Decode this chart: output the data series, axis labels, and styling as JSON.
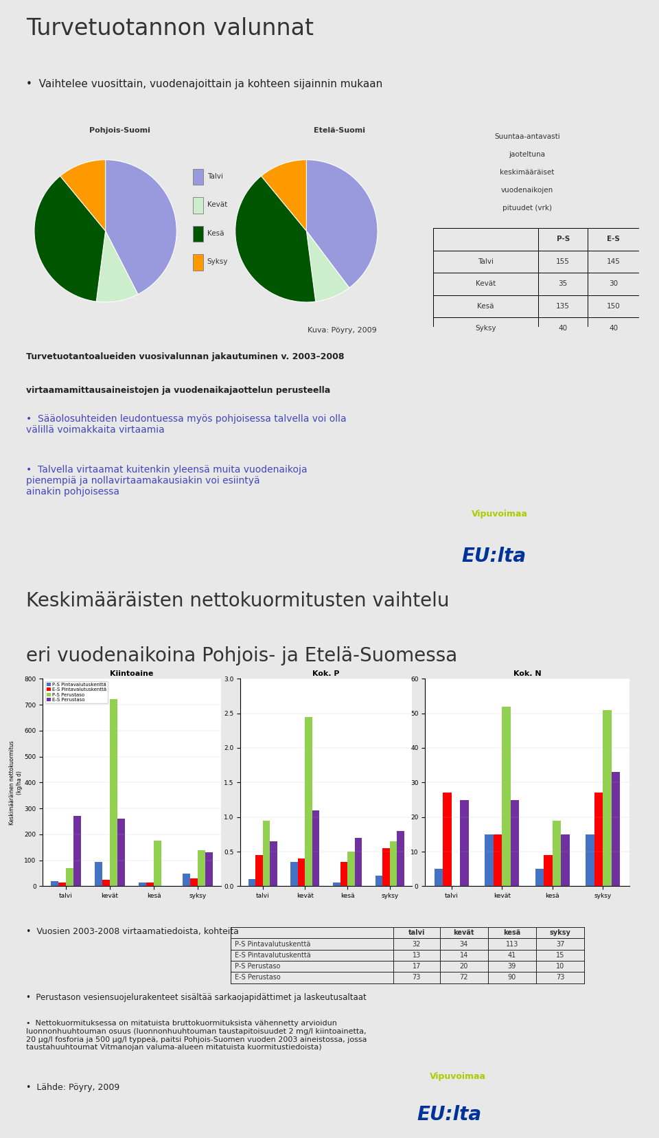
{
  "slide1": {
    "title": "Turvetuotannon valunnat",
    "bullet1": "Vaihtelee vuosittain, vuodenajoittain ja kohteen sijainnin mukaan",
    "pie_label_north": "Pohjois-Suomi",
    "pie_label_south": "Etelä-Suomi",
    "pie_legend": [
      "Talvi",
      "Kevät",
      "Kesä",
      "Syksy"
    ],
    "pie_colors": [
      "#9999dd",
      "#cceecc",
      "#005500",
      "#ff9900"
    ],
    "pie_north": [
      155,
      35,
      135,
      40
    ],
    "pie_south": [
      145,
      30,
      150,
      40
    ],
    "table_header": [
      "",
      "P-S",
      "E-S"
    ],
    "table_rows": [
      [
        "Talvi",
        "155",
        "145"
      ],
      [
        "Kevät",
        "35",
        "30"
      ],
      [
        "Kesä",
        "135",
        "150"
      ],
      [
        "Syksy",
        "40",
        "40"
      ]
    ],
    "table_title_lines": [
      "Suuntaa-antavasti",
      "jaoteltuna",
      "keskimääräiset",
      "vuodenaikojen",
      "pituudet (vrk)"
    ],
    "caption1": "Kuva: Pöyry, 2009",
    "caption2": "Turvetuotantoalueiden vuosivalunnan jakautuminen v. 2003–2008",
    "caption3": "virtaamamittausaineistojen ja vuodenaikajaottelun perusteella",
    "bullet2": "Sääolosuhteiden leudontuessa myös pohjoisessa talvella voi olla\nvälillä voimakkaita virtaamia",
    "bullet3": "Talvella virtaamat kuitenkin yleensä muita vuodenaikoja\npienempiä ja nollavirtaamakausiakin voi esiintyä\nainakin pohjoisessa"
  },
  "slide2": {
    "title_line1": "Keskimääräisten nettokuormitusten vaihtelu",
    "title_line2": "eri vuodenaikoina Pohjois- ja Etelä-Suomessa",
    "bar_xlabel": [
      "talvi",
      "kevät",
      "kesä",
      "syksy"
    ],
    "bar_colors": [
      "#4472c4",
      "#ff0000",
      "#92d050",
      "#7030a0"
    ],
    "bar_legend": [
      "P-S Pintavalutuskenttä",
      "E-S Pintavalutuskenttä",
      "P-S Perustaso",
      "E-S Perustaso"
    ],
    "kiintoaine_ylim": [
      0,
      800
    ],
    "kiintoaine_yticks": [
      0,
      100,
      200,
      300,
      400,
      500,
      600,
      700,
      800
    ],
    "kiintoaine_data": {
      "PS_pinta": [
        20,
        95,
        15,
        50
      ],
      "ES_pinta": [
        15,
        25,
        15,
        30
      ],
      "PS_peru": [
        70,
        720,
        175,
        140
      ],
      "ES_peru": [
        270,
        260,
        0,
        130
      ]
    },
    "kokP_ylim": [
      0,
      3
    ],
    "kokP_yticks": [
      0,
      0.5,
      1,
      1.5,
      2,
      2.5,
      3
    ],
    "kokP_data": {
      "PS_pinta": [
        0.1,
        0.35,
        0.05,
        0.15
      ],
      "ES_pinta": [
        0.45,
        0.4,
        0.35,
        0.55
      ],
      "PS_peru": [
        0.95,
        2.45,
        0.5,
        0.65
      ],
      "ES_peru": [
        0.65,
        1.1,
        0.7,
        0.8
      ]
    },
    "kokN_ylim": [
      0,
      60
    ],
    "kokN_yticks": [
      0,
      10,
      20,
      30,
      40,
      50,
      60
    ],
    "kokN_data": {
      "PS_pinta": [
        5,
        15,
        5,
        15
      ],
      "ES_pinta": [
        27,
        15,
        9,
        27
      ],
      "PS_peru": [
        0,
        52,
        19,
        51
      ],
      "ES_peru": [
        25,
        25,
        15,
        33
      ]
    },
    "bullet1": "Vuosien 2003-2008 virtaamatiedoista, kohteita",
    "table2_header": [
      "",
      "talvi",
      "kevät",
      "kesä",
      "syksy"
    ],
    "table2_rows": [
      [
        "P-S Pintavalutuskenttä",
        "32",
        "34",
        "113",
        "37"
      ],
      [
        "E-S Pintavalutuskenttä",
        "13",
        "14",
        "41",
        "15"
      ],
      [
        "P-S Perustaso",
        "17",
        "20",
        "39",
        "10"
      ],
      [
        "E-S Perustaso",
        "73",
        "72",
        "90",
        "73"
      ]
    ],
    "bullet2": "Perustason vesiensuojelurakenteet sisältää sarkaojapidättimet ja laskeutusaltaat",
    "bullet3": "Nettokuormituksessa on mitatuista bruttokuormituksista vähennetty arvioidun\nluonnonhuuhtouman osuus (luonnonhuuhtouman taustapitoisuudet 2 mg/l kiintoainetta,\n20 µg/l fosforia ja 500 µg/l typpeä, paitsi Pohjois-Suomen vuoden 2003 aineistossa, jossa\ntaustahuuhtoumat Vitmanojan valuma-alueen mitatuista kuormitustiedoista)",
    "bullet4": "Lähde: Pöyry, 2009"
  },
  "bg_color": "#e8e8e8",
  "slide_bg": "#f2f2f2",
  "border_color": "#999999"
}
